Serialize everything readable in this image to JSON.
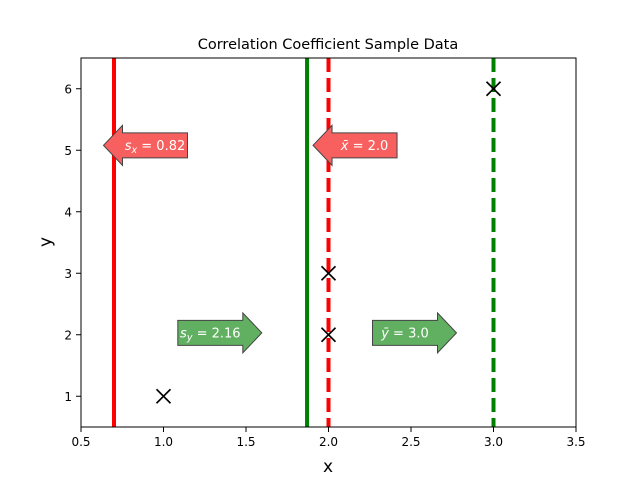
{
  "chart_data": {
    "type": "scatter",
    "title": "Correlation Coefficient Sample Data",
    "xlabel": "x",
    "ylabel": "y",
    "xlim": [
      0.5,
      3.5
    ],
    "ylim": [
      0.5,
      6.5
    ],
    "xticks": [
      0.5,
      1.0,
      1.5,
      2.0,
      2.5,
      3.0,
      3.5
    ],
    "xtick_labels": [
      "0.5",
      "1.0",
      "1.5",
      "2.0",
      "2.5",
      "3.0",
      "3.5"
    ],
    "yticks": [
      1,
      2,
      3,
      4,
      5,
      6
    ],
    "ytick_labels": [
      "1",
      "2",
      "3",
      "4",
      "5",
      "6"
    ],
    "grid": false,
    "points": [
      {
        "x": 1,
        "y": 1
      },
      {
        "x": 2,
        "y": 2
      },
      {
        "x": 2,
        "y": 3
      },
      {
        "x": 3,
        "y": 6
      }
    ],
    "vlines": [
      {
        "x": 0.7,
        "style": "solid",
        "color": "#ff0000"
      },
      {
        "x": 1.87,
        "style": "solid",
        "color": "#008000"
      },
      {
        "x": 2.0,
        "style": "dashed",
        "color": "#ff0000"
      },
      {
        "x": 3.0,
        "style": "dashed",
        "color": "#008000"
      }
    ],
    "annotations": [
      {
        "text": "s_x = 0.82",
        "base": "s",
        "sub": "x",
        "tail": " = 0.82",
        "direction": "left",
        "color": "#f86060",
        "x": 1.0,
        "y": 5.08
      },
      {
        "text": "x̄ = 2.0",
        "base": "x̄",
        "sub": "",
        "tail": " = 2.0",
        "direction": "left",
        "color": "#f86060",
        "x": 2.27,
        "y": 5.08
      },
      {
        "text": "s_y = 2.16",
        "base": "s",
        "sub": "y",
        "tail": " = 2.16",
        "direction": "right",
        "color": "#61b061",
        "x": 1.42,
        "y": 2.03
      },
      {
        "text": "ȳ = 3.0",
        "base": "ȳ",
        "sub": "",
        "tail": " = 3.0",
        "direction": "right",
        "color": "#61b061",
        "x": 2.6,
        "y": 2.03
      }
    ]
  }
}
